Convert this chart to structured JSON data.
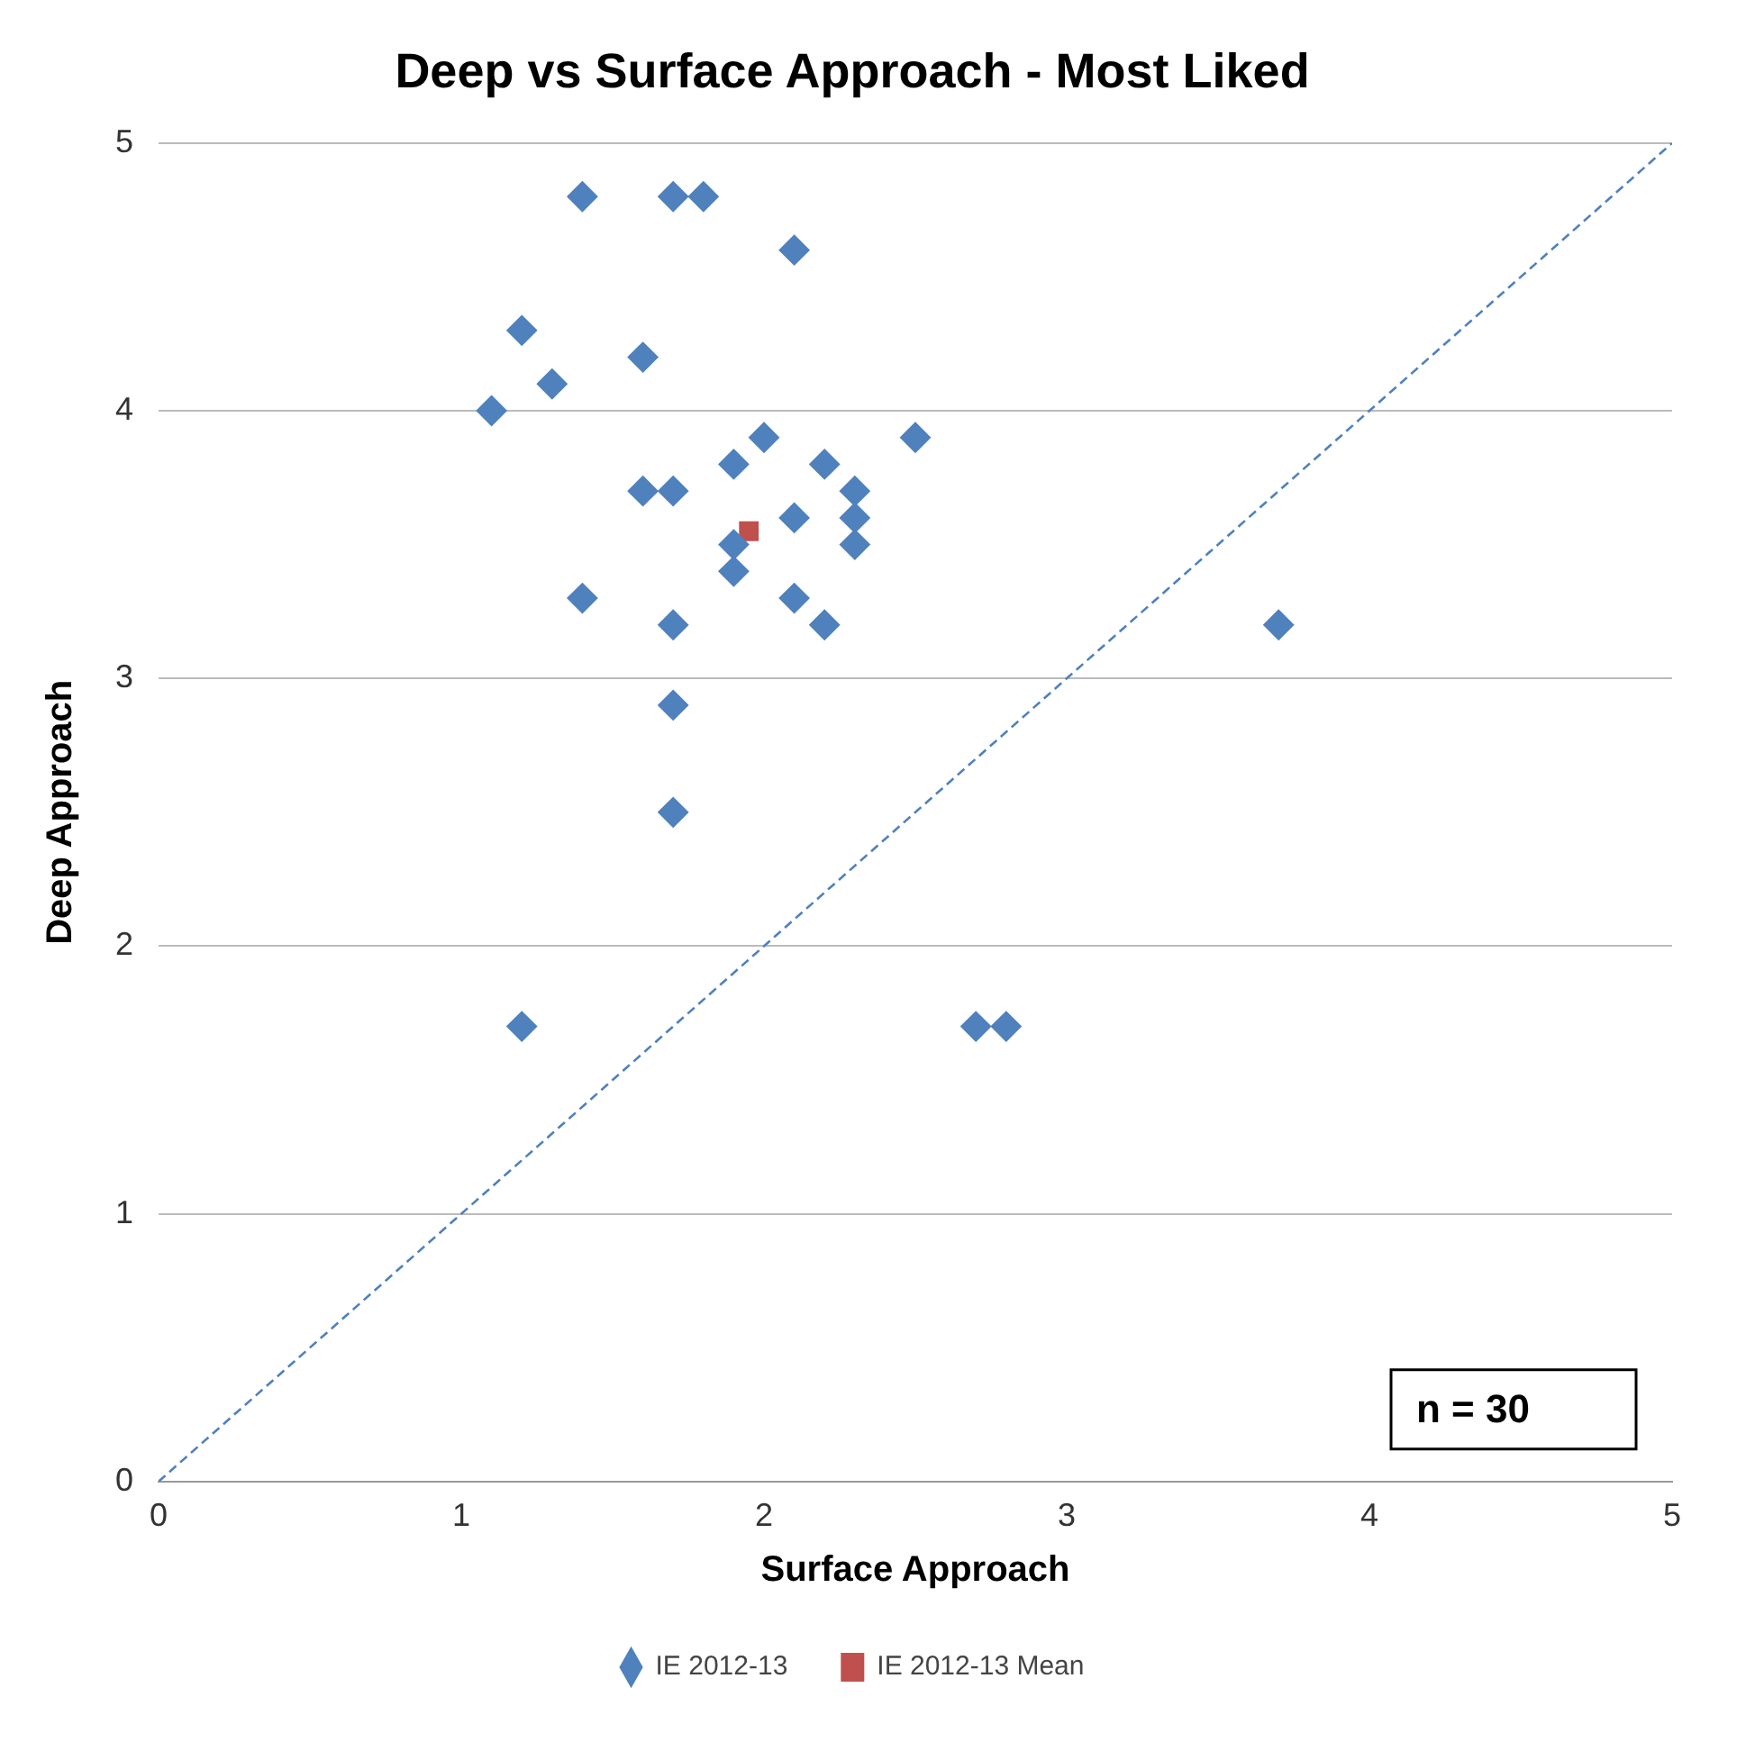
{
  "chart_data": {
    "type": "scatter",
    "title": "Deep vs Surface Approach - Most Liked",
    "xlabel": "Surface Approach",
    "ylabel": "Deep Approach",
    "xlim": [
      0,
      5
    ],
    "xticks": [
      0,
      1,
      2,
      3,
      4,
      5
    ],
    "ylim": [
      0,
      5
    ],
    "yticks": [
      0,
      1,
      2,
      3,
      4,
      5
    ],
    "grid": "y",
    "legend": "bottom",
    "annotations": [
      "n = 30"
    ],
    "series": [
      {
        "name": "IE 2012-13",
        "color": "#4f81bd",
        "marker": "diamond",
        "x": [
          1.1,
          1.2,
          1.3,
          1.4,
          1.7,
          1.8,
          2.1,
          1.6,
          1.6,
          1.7,
          1.9,
          2.0,
          1.9,
          1.9,
          2.1,
          2.1,
          2.2,
          2.2,
          2.3,
          2.3,
          2.3,
          2.5,
          1.4,
          1.7,
          1.7,
          1.7,
          1.2,
          2.7,
          2.8,
          3.7
        ],
        "values": [
          4.0,
          4.3,
          4.1,
          4.8,
          4.8,
          4.8,
          4.6,
          4.2,
          3.7,
          3.7,
          3.8,
          3.9,
          3.5,
          3.4,
          3.6,
          3.3,
          3.8,
          3.2,
          3.7,
          3.6,
          3.5,
          3.9,
          3.3,
          3.2,
          2.9,
          2.5,
          1.7,
          1.7,
          1.7,
          3.2
        ]
      },
      {
        "name": "IE 2012-13 Mean",
        "color": "#c0504d",
        "marker": "square",
        "x": [
          1.95
        ],
        "values": [
          3.55
        ]
      },
      {
        "type": "line",
        "color": "#4f81bd",
        "line_style": "dashed",
        "marker": "none",
        "x": [
          0,
          5
        ],
        "values": [
          0,
          5
        ]
      }
    ]
  }
}
